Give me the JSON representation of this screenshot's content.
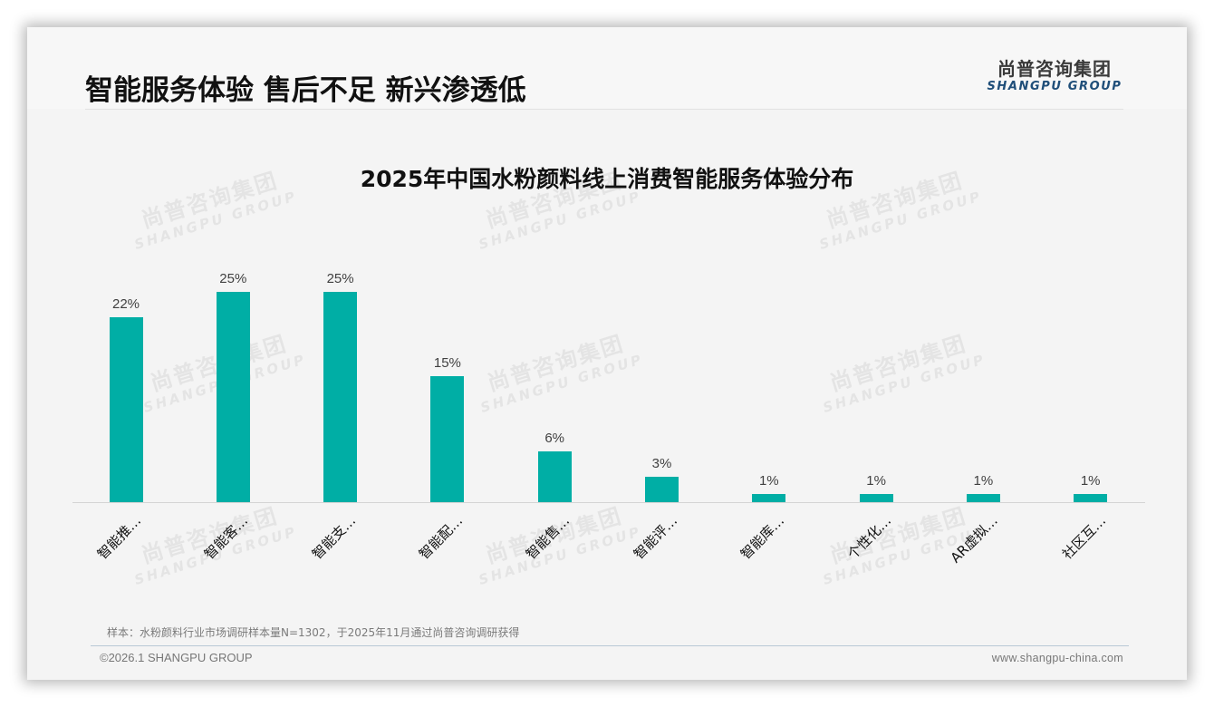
{
  "header": {
    "title": "智能服务体验 售后不足 新兴渗透低",
    "logo_cn": "尚普咨询集团",
    "logo_en": "SHANGPU GROUP"
  },
  "watermark": {
    "cn": "尚普咨询集团",
    "en": "SHANGPU GROUP"
  },
  "colors": {
    "bar": "#00aea5",
    "logo_en": "#1f4e79"
  },
  "chart_data": {
    "type": "bar",
    "title": "2025年中国水粉颜料线上消费智能服务体验分布",
    "xlabel": "",
    "ylabel": "",
    "ylim": [
      0,
      25
    ],
    "grid": false,
    "legend": null,
    "categories": [
      "智能推…",
      "智能客…",
      "智能支…",
      "智能配…",
      "智能售…",
      "智能评…",
      "智能库…",
      "个性化…",
      "AR虚拟…",
      "社区互…"
    ],
    "values": [
      22,
      25,
      25,
      15,
      6,
      3,
      1,
      1,
      1,
      1
    ],
    "value_labels": [
      "22%",
      "25%",
      "25%",
      "15%",
      "6%",
      "3%",
      "1%",
      "1%",
      "1%",
      "1%"
    ],
    "unit": "%"
  },
  "footer": {
    "source_note": "样本：水粉颜料行业市场调研样本量N=1302，于2025年11月通过尚普咨询调研获得",
    "copyright": "©2026.1 SHANGPU GROUP",
    "website": "www.shangpu-china.com"
  }
}
